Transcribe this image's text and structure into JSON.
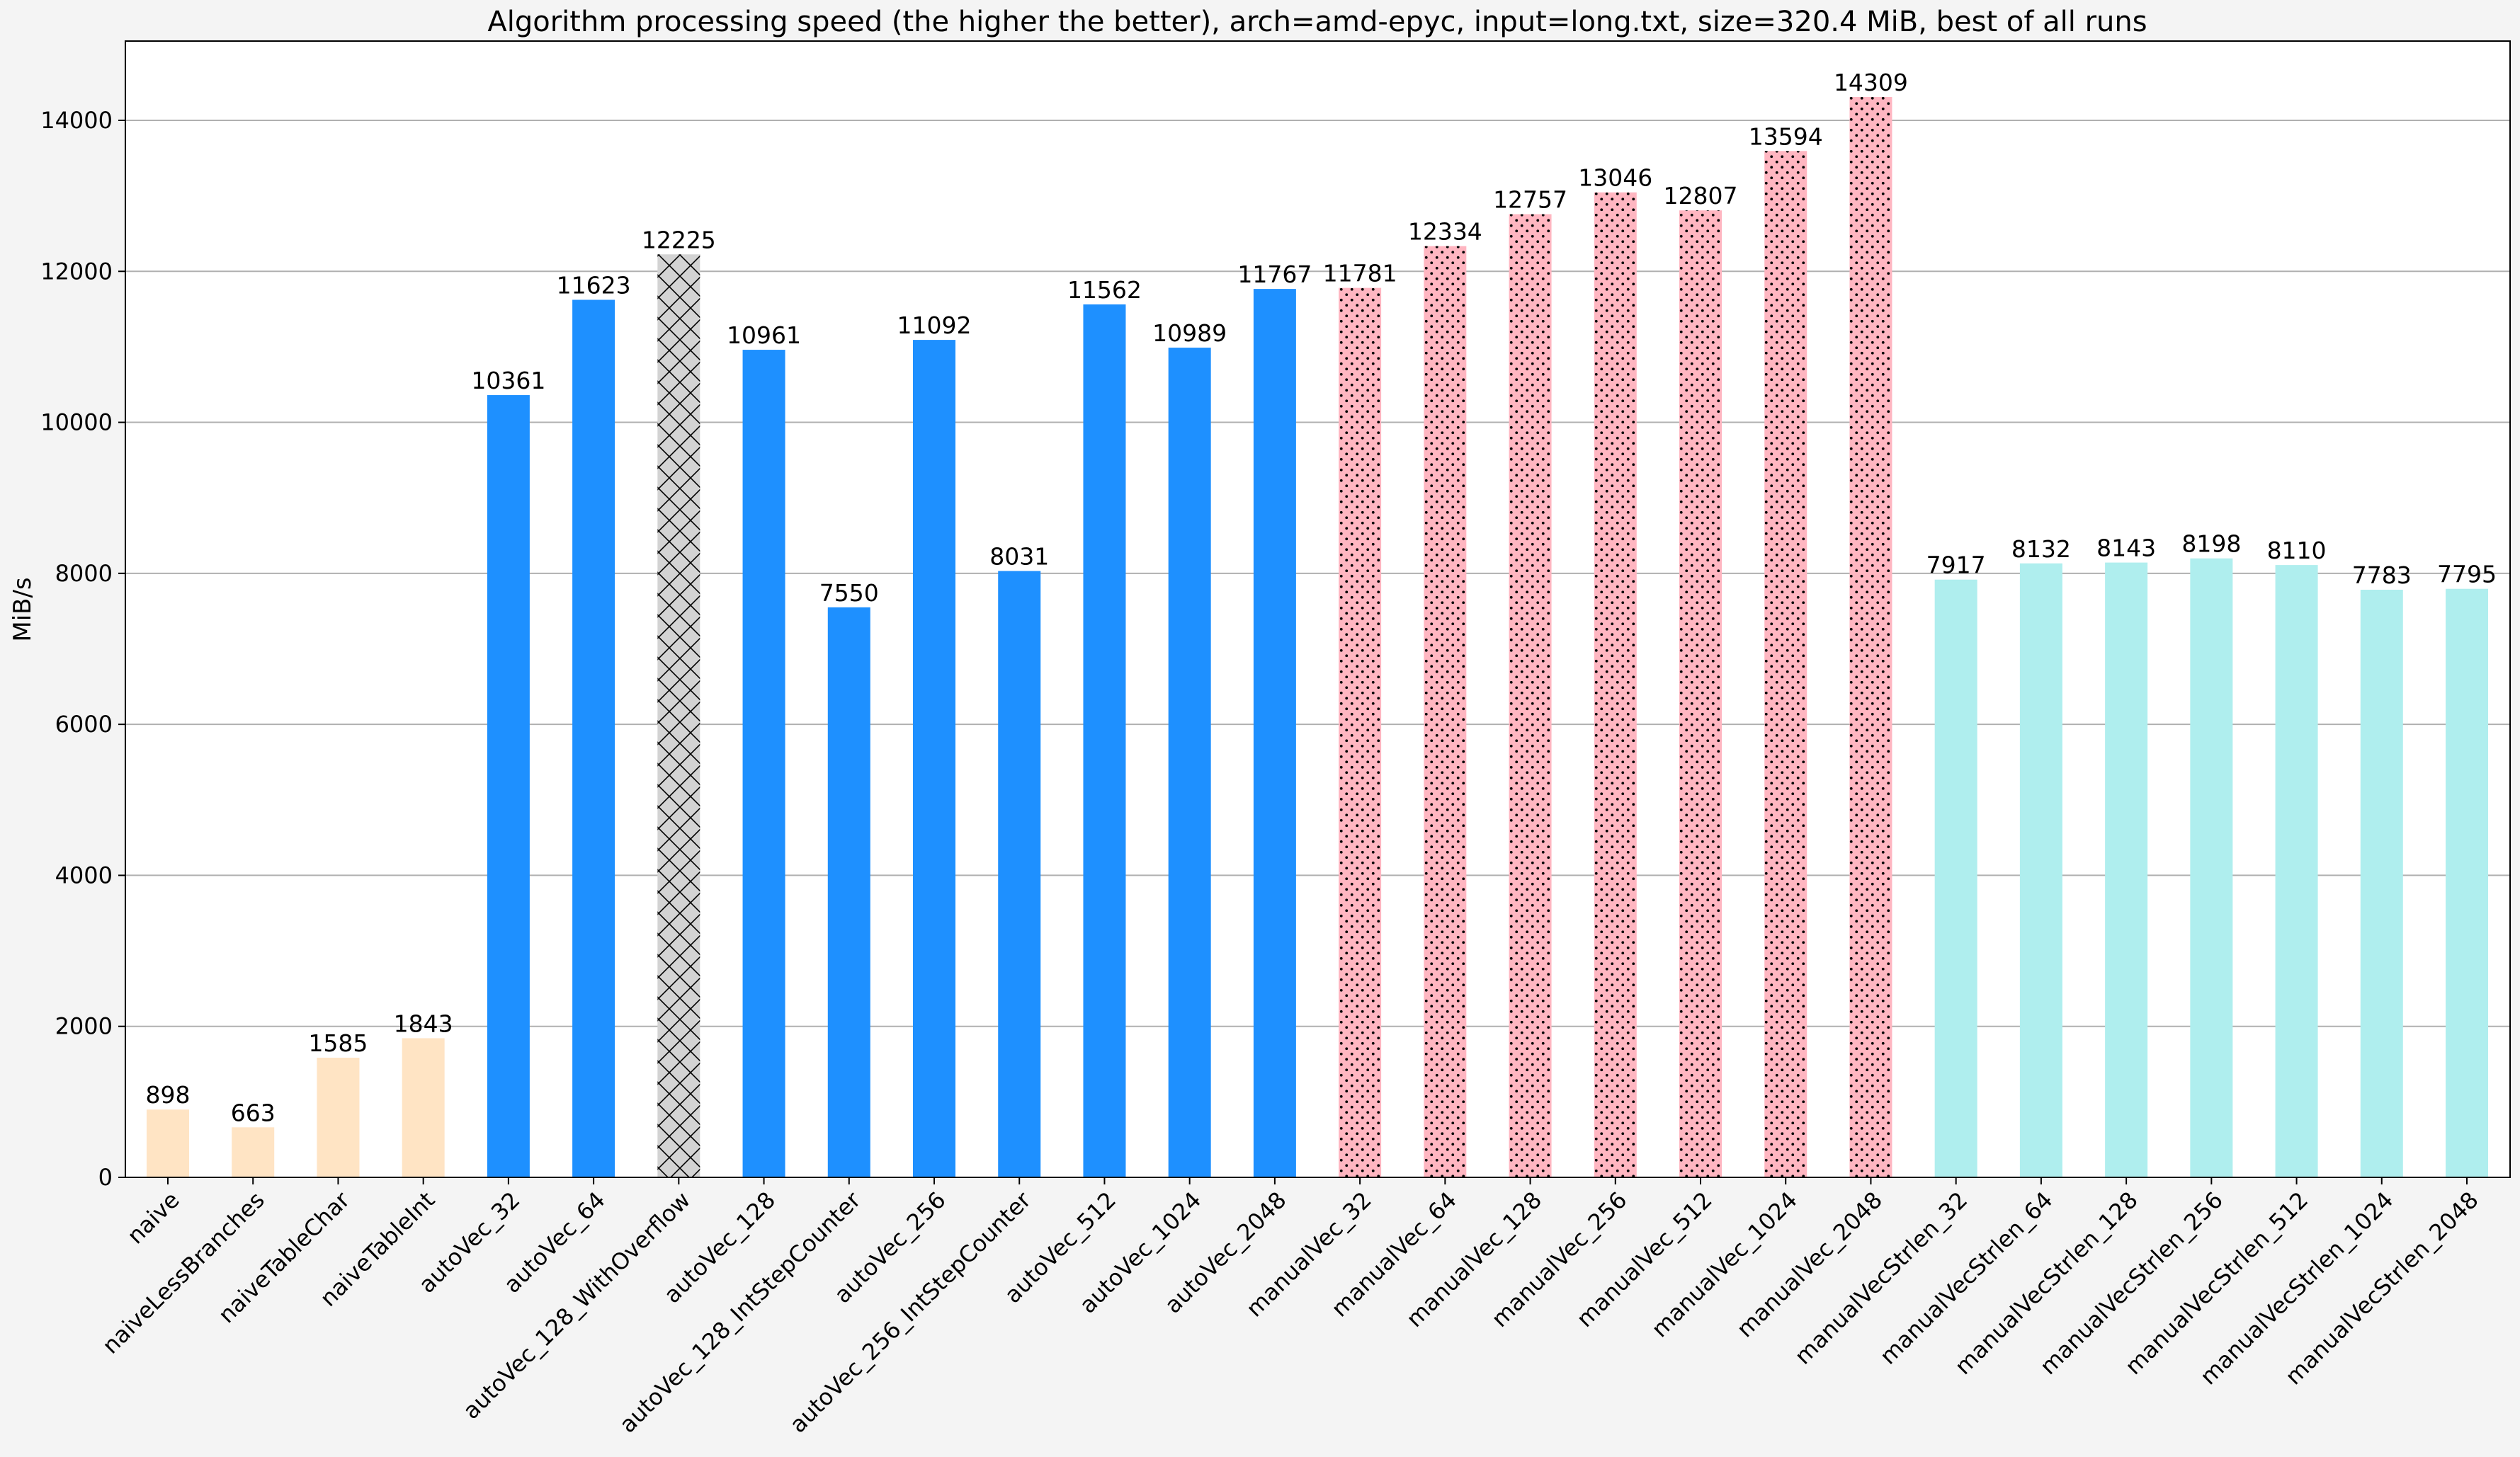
{
  "chart_data": {
    "type": "bar",
    "title": "Algorithm processing speed (the higher the better), arch=amd-epyc, input=long.txt, size=320.4 MiB, best of all runs",
    "xlabel": "",
    "ylabel": "MiB/s",
    "ylim": [
      0,
      15050
    ],
    "yticks": [
      0,
      2000,
      4000,
      6000,
      8000,
      10000,
      12000,
      14000
    ],
    "grid": "horizontal",
    "categories": [
      "naive",
      "naiveLessBranches",
      "naiveTableChar",
      "naiveTableInt",
      "autoVec_32",
      "autoVec_64",
      "autoVec_128_WithOverflow",
      "autoVec_128",
      "autoVec_128_IntStepCounter",
      "autoVec_256",
      "autoVec_256_IntStepCounter",
      "autoVec_512",
      "autoVec_1024",
      "autoVec_2048",
      "manualVec_32",
      "manualVec_64",
      "manualVec_128",
      "manualVec_256",
      "manualVec_512",
      "manualVec_1024",
      "manualVec_2048",
      "manualVecStrlen_32",
      "manualVecStrlen_64",
      "manualVecStrlen_128",
      "manualVecStrlen_256",
      "manualVecStrlen_512",
      "manualVecStrlen_1024",
      "manualVecStrlen_2048"
    ],
    "values": [
      898,
      663,
      1585,
      1843,
      10361,
      11623,
      12225,
      10961,
      7550,
      11092,
      8031,
      11562,
      10989,
      11767,
      11781,
      12334,
      12757,
      13046,
      12807,
      13594,
      14309,
      7917,
      8132,
      8143,
      8198,
      8110,
      7783,
      7795
    ],
    "bar_styles": [
      "naive",
      "naive",
      "naive",
      "naive",
      "autovec",
      "autovec",
      "overflow",
      "autovec",
      "autovec",
      "autovec",
      "autovec",
      "autovec",
      "autovec",
      "autovec",
      "manual",
      "manual",
      "manual",
      "manual",
      "manual",
      "manual",
      "manual",
      "strlen",
      "strlen",
      "strlen",
      "strlen",
      "strlen",
      "strlen",
      "strlen"
    ],
    "colors": {
      "naive": "#ffe4c4",
      "autovec": "#1e90ff",
      "overflow": "#d3d3d3",
      "manual": "#ffb6c1",
      "strlen": "#afeeee",
      "grid": "#b0b0b0",
      "axes_bg": "#ffffff",
      "figure_bg": "#f4f4f4"
    }
  }
}
